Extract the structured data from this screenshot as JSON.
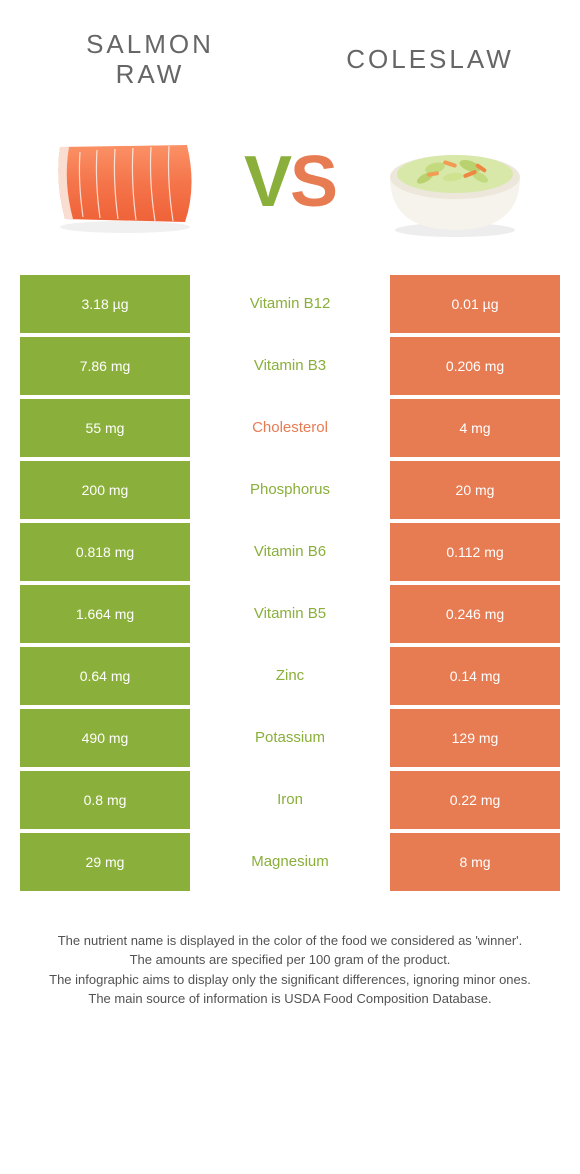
{
  "left_food": {
    "title": "SALMON\nRAW",
    "color": "#8aaf3a"
  },
  "right_food": {
    "title": "COLESLAW",
    "color": "#e77b52"
  },
  "vs": {
    "v": "V",
    "s": "S"
  },
  "rows": [
    {
      "nutrient": "Vitamin B12",
      "left": "3.18 µg",
      "right": "0.01 µg",
      "winner": "left"
    },
    {
      "nutrient": "Vitamin B3",
      "left": "7.86 mg",
      "right": "0.206 mg",
      "winner": "left"
    },
    {
      "nutrient": "Cholesterol",
      "left": "55 mg",
      "right": "4 mg",
      "winner": "right"
    },
    {
      "nutrient": "Phosphorus",
      "left": "200 mg",
      "right": "20 mg",
      "winner": "left"
    },
    {
      "nutrient": "Vitamin B6",
      "left": "0.818 mg",
      "right": "0.112 mg",
      "winner": "left"
    },
    {
      "nutrient": "Vitamin B5",
      "left": "1.664 mg",
      "right": "0.246 mg",
      "winner": "left"
    },
    {
      "nutrient": "Zinc",
      "left": "0.64 mg",
      "right": "0.14 mg",
      "winner": "left"
    },
    {
      "nutrient": "Potassium",
      "left": "490 mg",
      "right": "129 mg",
      "winner": "left"
    },
    {
      "nutrient": "Iron",
      "left": "0.8 mg",
      "right": "0.22 mg",
      "winner": "left"
    },
    {
      "nutrient": "Magnesium",
      "left": "29 mg",
      "right": "8 mg",
      "winner": "left"
    }
  ],
  "footnotes": [
    "The nutrient name is displayed in the color of the food we considered as 'winner'.",
    "The amounts are specified per 100 gram of the product.",
    "The infographic aims to display only the significant differences, ignoring minor ones.",
    "The main source of information is USDA Food Composition Database."
  ],
  "colors": {
    "left_cell_bg": "#8aaf3a",
    "right_cell_bg": "#e77b52",
    "left_winner_text": "#8aaf3a",
    "right_winner_text": "#e77b52"
  }
}
